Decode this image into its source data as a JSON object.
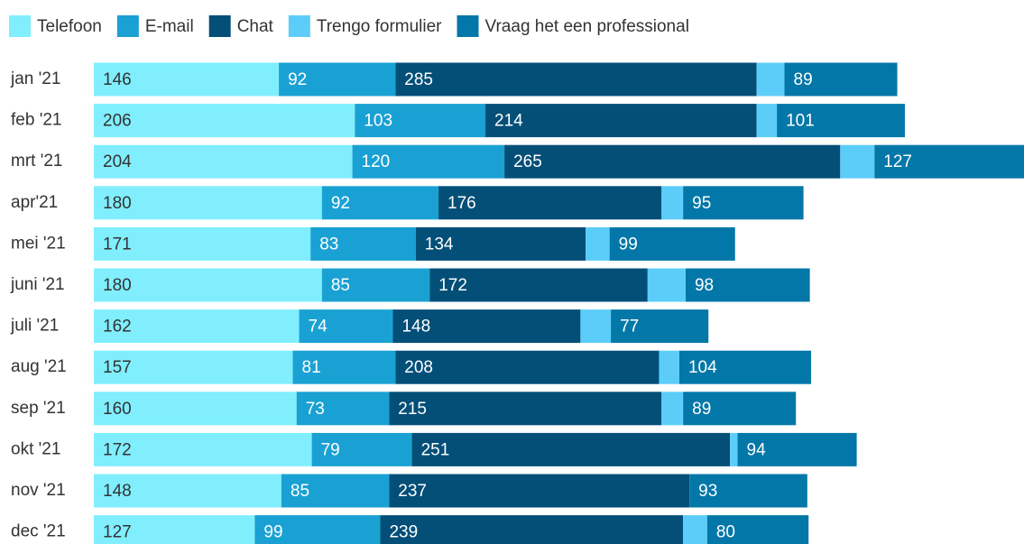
{
  "chart_data": {
    "type": "stacked-barh",
    "categories": [
      "jan '21",
      "feb '21",
      "mrt '21",
      "apr'21",
      "mei '21",
      "juni '21",
      "juli '21",
      "aug '21",
      "sep '21",
      "okt '21",
      "nov '21",
      "dec '21"
    ],
    "series": [
      {
        "name": "Telefoon",
        "color": "#80eefd",
        "label_color": "#333333",
        "values": [
          146,
          206,
          204,
          180,
          171,
          180,
          162,
          157,
          160,
          172,
          148,
          127
        ]
      },
      {
        "name": "E-mail",
        "color": "#1aa1d3",
        "label_color": "#ffffff",
        "values": [
          92,
          103,
          120,
          92,
          83,
          85,
          74,
          81,
          73,
          79,
          85,
          99
        ]
      },
      {
        "name": "Chat",
        "color": "#034f78",
        "label_color": "#ffffff",
        "values": [
          285,
          214,
          265,
          176,
          134,
          172,
          148,
          208,
          215,
          251,
          237,
          239
        ]
      },
      {
        "name": "Trengo formulier",
        "color": "#5ccdf9",
        "labels": false,
        "values": [
          22,
          16,
          27,
          17,
          19,
          30,
          24,
          16,
          17,
          6,
          0,
          19
        ]
      },
      {
        "name": "Vraag het een professional",
        "color": "#0377a8",
        "label_color": "#ffffff",
        "values": [
          89,
          101,
          127,
          95,
          99,
          98,
          77,
          104,
          89,
          94,
          93,
          80
        ]
      }
    ],
    "xlim": [
      0,
      734
    ]
  }
}
